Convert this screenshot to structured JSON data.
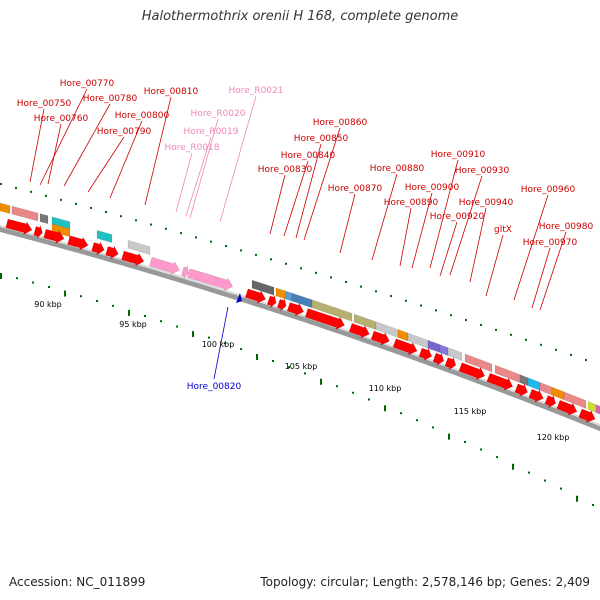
{
  "title": "Halothermothrix orenii H 168, complete genome",
  "footer": {
    "accession": "Accession: NC_011899",
    "topology": "Topology: circular; Length: 2,578,146 bp; Genes: 2,409"
  },
  "colors": {
    "cds": "#ff0000",
    "rna": "#ff99cc",
    "label_cds": "#cc0000",
    "label_rna": "#ee88bb",
    "label_blue": "#0000cc",
    "backbone": "#999999",
    "tick": "#006600"
  },
  "ruler": [
    "90 kbp",
    "95 kbp",
    "100 kbp",
    "105 kbp",
    "110 kbp",
    "115 kbp",
    "120 kbp"
  ],
  "gene_labels": [
    {
      "text": "Hore_00770",
      "kind": "cds"
    },
    {
      "text": "Hore_00750",
      "kind": "cds"
    },
    {
      "text": "Hore_00780",
      "kind": "cds"
    },
    {
      "text": "Hore_00760",
      "kind": "cds"
    },
    {
      "text": "Hore_00810",
      "kind": "cds"
    },
    {
      "text": "Hore_00800",
      "kind": "cds"
    },
    {
      "text": "Hore_00790",
      "kind": "cds"
    },
    {
      "text": "Hore_R0021",
      "kind": "rna"
    },
    {
      "text": "Hore_R0020",
      "kind": "rna"
    },
    {
      "text": "Hore_R0019",
      "kind": "rna"
    },
    {
      "text": "Hore_R0018",
      "kind": "rna"
    },
    {
      "text": "Hore_00860",
      "kind": "cds"
    },
    {
      "text": "Hore_00850",
      "kind": "cds"
    },
    {
      "text": "Hore_00840",
      "kind": "cds"
    },
    {
      "text": "Hore_00830",
      "kind": "cds"
    },
    {
      "text": "Hore_00880",
      "kind": "cds"
    },
    {
      "text": "Hore_00870",
      "kind": "cds"
    },
    {
      "text": "Hore_00910",
      "kind": "cds"
    },
    {
      "text": "Hore_00930",
      "kind": "cds"
    },
    {
      "text": "Hore_00900",
      "kind": "cds"
    },
    {
      "text": "Hore_00890",
      "kind": "cds"
    },
    {
      "text": "Hore_00940",
      "kind": "cds"
    },
    {
      "text": "Hore_00920",
      "kind": "cds"
    },
    {
      "text": "Hore_00960",
      "kind": "cds"
    },
    {
      "text": "Hore_00980",
      "kind": "cds"
    },
    {
      "text": "gltX",
      "kind": "cds"
    },
    {
      "text": "Hore_00970",
      "kind": "cds"
    },
    {
      "text": "Hore_00820",
      "kind": "blue"
    }
  ]
}
